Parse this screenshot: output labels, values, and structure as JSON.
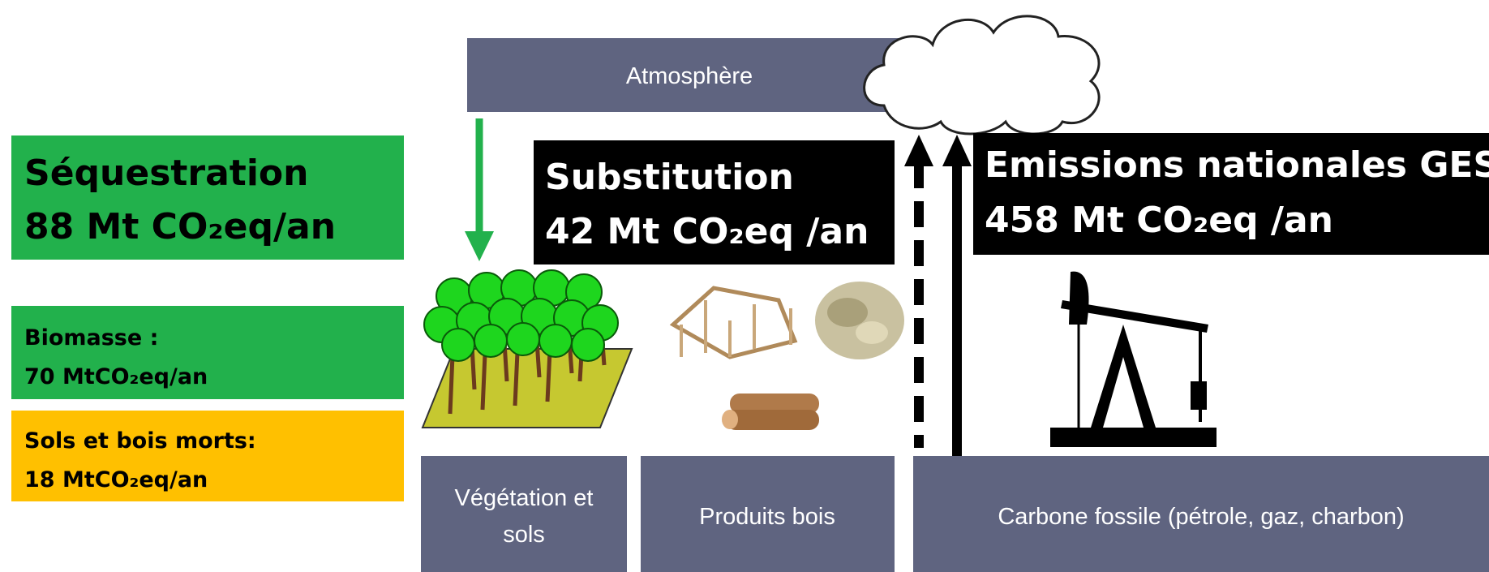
{
  "atmosphere": "Atmosphère",
  "sequestration": {
    "title": "Séquestration",
    "value": "88 Mt CO₂eq/an"
  },
  "substitution": {
    "title": "Substitution",
    "value": "42 Mt CO₂eq /an"
  },
  "emissions": {
    "title": "Emissions nationales GES",
    "value": "458 Mt CO₂eq /an"
  },
  "biomasse": {
    "title": "Biomasse :",
    "value": "70 MtCO₂eq/an"
  },
  "sols": {
    "title": "Sols et bois morts:",
    "value": "18 MtCO₂eq/an"
  },
  "reservoirs": [
    {
      "line1": "Végétation et",
      "line2": "sols"
    },
    {
      "line1": "Produits bois"
    },
    {
      "line1": "Carbone fossile (pétrole, gaz, charbon)"
    }
  ]
}
